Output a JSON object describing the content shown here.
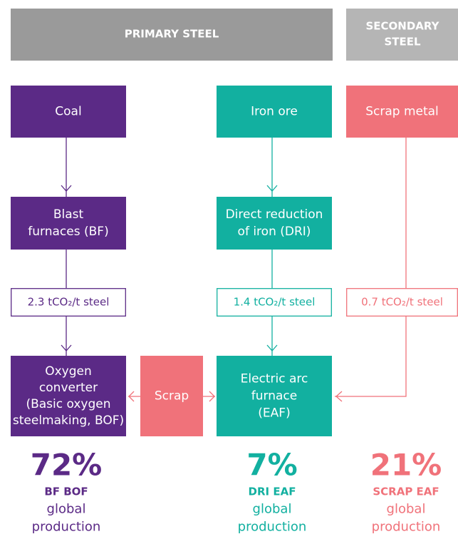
{
  "headers": [
    {
      "lines": [
        "PRIMARY STEEL"
      ]
    },
    {
      "lines": [
        "SECONDARY",
        "STEEL"
      ]
    }
  ],
  "nodes": [
    {
      "lines": [
        "Coal"
      ]
    },
    {
      "lines": [
        "Iron ore"
      ]
    },
    {
      "lines": [
        "Scrap metal"
      ]
    },
    {
      "lines": [
        "Blast",
        "furnaces (BF)"
      ]
    },
    {
      "lines": [
        "Direct reduction",
        "of iron (DRI)"
      ]
    },
    {
      "lines": [
        "Oxygen",
        "converter",
        "(Basic oxygen",
        "steelmaking, BOF)"
      ]
    },
    {
      "lines": [
        "Scrap"
      ]
    },
    {
      "lines": [
        "Electric arc",
        "furnace",
        "(EAF)"
      ]
    }
  ],
  "emissions": [
    "2.3 tCO₂/t steel",
    "1.4 tCO₂/t steel",
    "0.7 tCO₂/t steel"
  ],
  "shares": [
    {
      "percent": "72%",
      "route": "BF BOF",
      "lines": [
        "global",
        "production"
      ]
    },
    {
      "percent": "7%",
      "route": "DRI EAF",
      "lines": [
        "global",
        "production"
      ]
    },
    {
      "percent": "21%",
      "route": "SCRAP EAF",
      "lines": [
        "global",
        "production"
      ]
    }
  ]
}
